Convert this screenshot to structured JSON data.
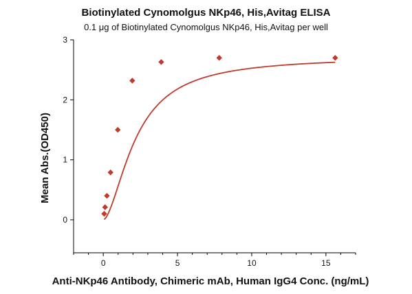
{
  "chart_data": {
    "type": "scatter",
    "title": "Biotinylated Cynomolgus NKp46, His,Avitag ELISA",
    "subtitle": "0.1 μg of Biotinylated Cynomolgus NKp46, His,Avitag per well",
    "xlabel": "Anti-NKp46 Antibody, Chimeric mAb, Human IgG4 Conc. (ng/mL)",
    "ylabel": "Mean Abs.(OD450)",
    "xlim": [
      -2,
      17
    ],
    "ylim": [
      -0.55,
      3
    ],
    "x_ticks": [
      0,
      5,
      10,
      15
    ],
    "y_ticks": [
      0,
      1,
      2,
      3
    ],
    "x_tick_labels": [
      "0",
      "5",
      "10",
      "15"
    ],
    "y_tick_labels": [
      "0",
      "1",
      "2",
      "3"
    ],
    "grid": false,
    "legend": "none",
    "series": [
      {
        "color": "#c0392b",
        "marker": "diamond",
        "x": [
          0.061,
          0.122,
          0.244,
          0.488,
          0.977,
          1.953,
          3.906,
          7.813,
          15.625
        ],
        "y": [
          0.1,
          0.21,
          0.4,
          0.79,
          1.5,
          2.32,
          2.63,
          2.7,
          2.7
        ]
      }
    ],
    "fit_curve": {
      "color": "#c0392b",
      "model": "4PL",
      "bottom": 0.0,
      "top": 2.72,
      "ec50": 2.2,
      "hill": 1.7
    }
  }
}
